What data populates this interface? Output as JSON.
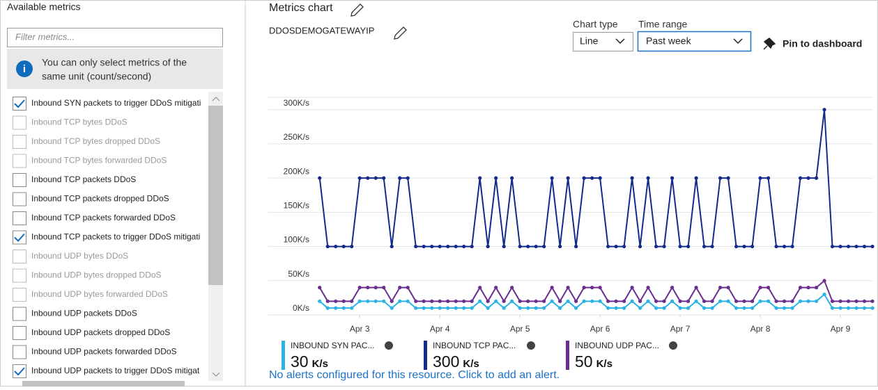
{
  "left_panel": {
    "title": "Available metrics",
    "filter_placeholder": "Filter metrics...",
    "info": [
      "You can only select metrics of the",
      "same unit (count/second)"
    ],
    "metrics": [
      {
        "label": "Inbound SYN packets to trigger DDoS mitigati",
        "checked": true,
        "enabled": true
      },
      {
        "label": "Inbound TCP bytes DDoS",
        "checked": false,
        "enabled": false
      },
      {
        "label": "Inbound TCP bytes dropped DDoS",
        "checked": false,
        "enabled": false
      },
      {
        "label": "Inbound TCP bytes forwarded DDoS",
        "checked": false,
        "enabled": false
      },
      {
        "label": "Inbound TCP packets DDoS",
        "checked": false,
        "enabled": true
      },
      {
        "label": "Inbound TCP packets dropped DDoS",
        "checked": false,
        "enabled": true
      },
      {
        "label": "Inbound TCP packets forwarded DDoS",
        "checked": false,
        "enabled": true
      },
      {
        "label": "Inbound TCP packets to trigger DDoS mitigati",
        "checked": true,
        "enabled": true
      },
      {
        "label": "Inbound UDP bytes DDoS",
        "checked": false,
        "enabled": false
      },
      {
        "label": "Inbound UDP bytes dropped DDoS",
        "checked": false,
        "enabled": false
      },
      {
        "label": "Inbound UDP bytes forwarded DDoS",
        "checked": false,
        "enabled": false
      },
      {
        "label": "Inbound UDP packets DDoS",
        "checked": false,
        "enabled": true
      },
      {
        "label": "Inbound UDP packets dropped DDoS",
        "checked": false,
        "enabled": true
      },
      {
        "label": "Inbound UDP packets forwarded DDoS",
        "checked": false,
        "enabled": true
      },
      {
        "label": "Inbound UDP packets to trigger DDoS mitigat",
        "checked": true,
        "enabled": true
      }
    ]
  },
  "header": {
    "title": "Metrics chart",
    "resource": "DDOSDEMOGATEWAYIP",
    "chart_type_label": "Chart type",
    "chart_type": "Line",
    "time_range_label": "Time range",
    "time_range": "Past week",
    "pin": "Pin to dashboard"
  },
  "chart_data": {
    "type": "line",
    "x": [
      2.5,
      2.6,
      2.7,
      2.8,
      2.9,
      3.0,
      3.1,
      3.2,
      3.3,
      3.4,
      3.5,
      3.6,
      3.7,
      3.8,
      3.9,
      4.0,
      4.1,
      4.2,
      4.3,
      4.4,
      4.5,
      4.6,
      4.7,
      4.8,
      4.9,
      5.0,
      5.1,
      5.2,
      5.3,
      5.4,
      5.5,
      5.6,
      5.7,
      5.8,
      5.9,
      6.0,
      6.1,
      6.2,
      6.3,
      6.4,
      6.5,
      6.6,
      6.7,
      6.8,
      6.9,
      7.0,
      7.1,
      7.2,
      7.3,
      7.4,
      7.5,
      7.6,
      7.7,
      7.8,
      7.9,
      8.0,
      8.1,
      8.2,
      8.3,
      8.4,
      8.5,
      8.6,
      8.7,
      8.8,
      8.9,
      9.0,
      9.1,
      9.2,
      9.3,
      9.4
    ],
    "xlim": [
      2.45,
      9.4
    ],
    "xticks": [
      {
        "value": 3,
        "label": "Apr 3"
      },
      {
        "value": 4,
        "label": "Apr 4"
      },
      {
        "value": 5,
        "label": "Apr 5"
      },
      {
        "value": 6,
        "label": "Apr 6"
      },
      {
        "value": 7,
        "label": "Apr 7"
      },
      {
        "value": 8,
        "label": "Apr 8"
      },
      {
        "value": 9,
        "label": "Apr 9"
      }
    ],
    "ylim": [
      0,
      318
    ],
    "yticks": [
      {
        "value": 0,
        "label": "0K/s"
      },
      {
        "value": 50,
        "label": "50K/s"
      },
      {
        "value": 100,
        "label": "100K/s"
      },
      {
        "value": 150,
        "label": "150K/s"
      },
      {
        "value": 200,
        "label": "200K/s"
      },
      {
        "value": 250,
        "label": "250K/s"
      },
      {
        "value": 300,
        "label": "300K/s"
      }
    ],
    "grid": true,
    "series": [
      {
        "name": "INBOUND SYN PAC...",
        "color": "#2bb3e6",
        "summary_value": 30,
        "summary_unit": "K/s",
        "values": [
          20,
          10,
          10,
          10,
          10,
          20,
          20,
          20,
          20,
          10,
          20,
          20,
          10,
          10,
          10,
          10,
          10,
          10,
          10,
          10,
          20,
          10,
          20,
          10,
          20,
          10,
          10,
          10,
          10,
          20,
          10,
          20,
          10,
          20,
          20,
          20,
          10,
          10,
          10,
          20,
          10,
          20,
          10,
          10,
          20,
          10,
          10,
          20,
          10,
          10,
          20,
          20,
          10,
          10,
          10,
          20,
          20,
          10,
          10,
          10,
          20,
          20,
          20,
          30,
          10,
          10,
          10,
          10,
          10,
          10
        ]
      },
      {
        "name": "INBOUND TCP PAC...",
        "color": "#142a8c",
        "summary_value": 300,
        "summary_unit": "K/s",
        "values": [
          200,
          100,
          100,
          100,
          100,
          200,
          200,
          200,
          200,
          100,
          200,
          200,
          100,
          100,
          100,
          100,
          100,
          100,
          100,
          100,
          200,
          100,
          200,
          100,
          200,
          100,
          100,
          100,
          100,
          200,
          100,
          200,
          100,
          200,
          200,
          200,
          100,
          100,
          100,
          200,
          100,
          200,
          100,
          100,
          200,
          100,
          100,
          200,
          100,
          100,
          200,
          200,
          100,
          100,
          100,
          200,
          200,
          100,
          100,
          100,
          200,
          200,
          200,
          300,
          100,
          100,
          100,
          100,
          100,
          100
        ]
      },
      {
        "name": "INBOUND UDP PAC...",
        "color": "#6b2d8f",
        "summary_value": 50,
        "summary_unit": "K/s",
        "values": [
          40,
          20,
          20,
          20,
          20,
          40,
          40,
          40,
          40,
          20,
          40,
          40,
          20,
          20,
          20,
          20,
          20,
          20,
          20,
          20,
          40,
          20,
          40,
          20,
          40,
          20,
          20,
          20,
          20,
          40,
          20,
          40,
          20,
          40,
          40,
          40,
          20,
          20,
          20,
          40,
          20,
          40,
          20,
          20,
          40,
          20,
          20,
          40,
          20,
          20,
          40,
          40,
          20,
          20,
          20,
          40,
          40,
          20,
          20,
          20,
          40,
          40,
          40,
          50,
          20,
          20,
          20,
          20,
          20,
          20
        ]
      }
    ]
  },
  "alert": "No alerts configured for this resource. Click to add an alert."
}
